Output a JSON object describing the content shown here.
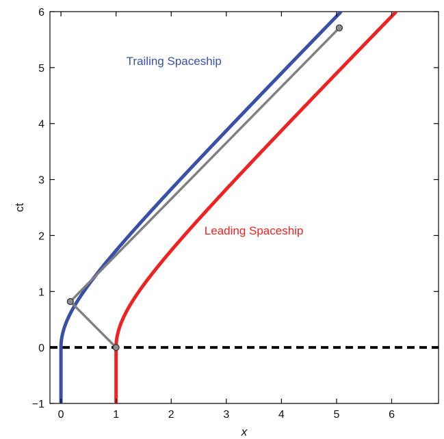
{
  "chart_data": {
    "type": "line",
    "xlabel": "x",
    "ylabel": "ct",
    "xlim": [
      -0.2,
      6.85
    ],
    "ylim": [
      -1,
      6
    ],
    "x_ticks": [
      0,
      1,
      2,
      3,
      4,
      5,
      6
    ],
    "y_ticks": [
      -1,
      0,
      1,
      2,
      3,
      4,
      5,
      6
    ],
    "grid": false,
    "series": [
      {
        "name": "Trailing Spaceship",
        "color": "#3a4fa8",
        "x0": 0,
        "t_start": -1,
        "t_end": 6,
        "accel_start_t": 0,
        "points_sample": [
          [
            0,
            -1
          ],
          [
            0,
            0
          ],
          [
            0.17,
            0.82
          ],
          [
            1.0,
            2.43
          ],
          [
            2.0,
            3.68
          ],
          [
            3.0,
            4.84
          ],
          [
            4.33,
            6.0
          ]
        ]
      },
      {
        "name": "Leading Spaceship",
        "color": "#ee2222",
        "x0": 1,
        "t_start": -1,
        "t_end": 6,
        "accel_start_t": 0,
        "points_sample": [
          [
            1,
            -1
          ],
          [
            1,
            0
          ],
          [
            1.2,
            0.66
          ],
          [
            2.0,
            1.73
          ],
          [
            3.0,
            2.83
          ],
          [
            4.0,
            3.87
          ],
          [
            5.05,
            5.71
          ],
          [
            5.29,
            6.0
          ]
        ]
      }
    ],
    "reference_lines": [
      {
        "type": "horizontal",
        "y": 0,
        "style": "dashed",
        "color": "#000000"
      }
    ],
    "light_signal_path": {
      "color": "#808080",
      "points": [
        [
          1.0,
          0.0
        ],
        [
          0.17,
          0.82
        ],
        [
          5.05,
          5.71
        ]
      ]
    },
    "markers": [
      {
        "x": 1.0,
        "y": 0.0
      },
      {
        "x": 0.17,
        "y": 0.82
      },
      {
        "x": 5.05,
        "y": 5.71
      }
    ],
    "annotations": [
      {
        "text": "Trailing Spaceship",
        "x": 2.05,
        "y": 5.05,
        "color": "#3a4fa8"
      },
      {
        "text": "Leading Spaceship",
        "x": 3.5,
        "y": 2.02,
        "color": "#ee2222"
      }
    ]
  }
}
